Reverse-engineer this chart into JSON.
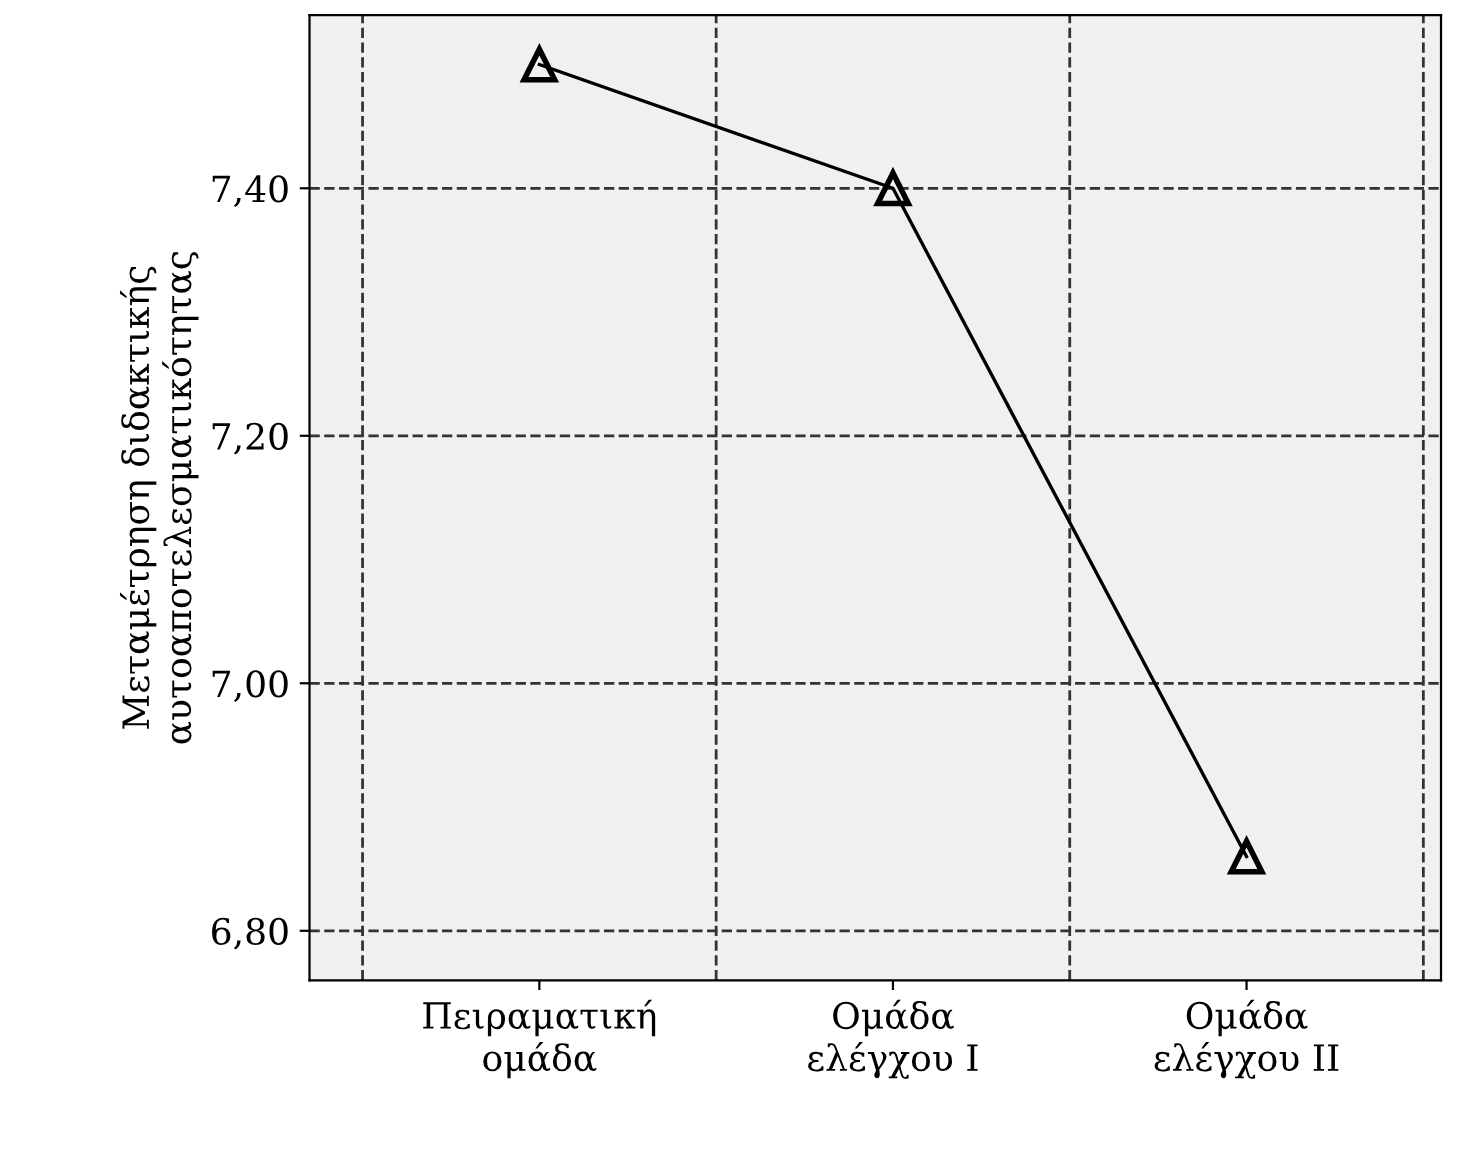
{
  "chart_data": {
    "type": "line",
    "ylabel": "Μεταμέτρηση διδακτικής\nαυτοαποτελεσματικότητας",
    "categories": [
      "Πειραματική\nομάδα",
      "Ομάδα\nελέγχου Ι",
      "Ομάδα\nελέγχου ΙΙ"
    ],
    "series": [
      {
        "color": "#000000",
        "values": [
          7.5,
          7.4,
          6.86
        ]
      }
    ],
    "ylim": [
      6.76,
      7.54
    ],
    "yticks": [
      {
        "value": 6.8,
        "label": "6,80"
      },
      {
        "value": 7.0,
        "label": "7,00"
      },
      {
        "value": 7.2,
        "label": "7,20"
      },
      {
        "value": 7.4,
        "label": "7,40"
      }
    ],
    "grid": true,
    "marker": "triangle",
    "line_style": "solid"
  }
}
